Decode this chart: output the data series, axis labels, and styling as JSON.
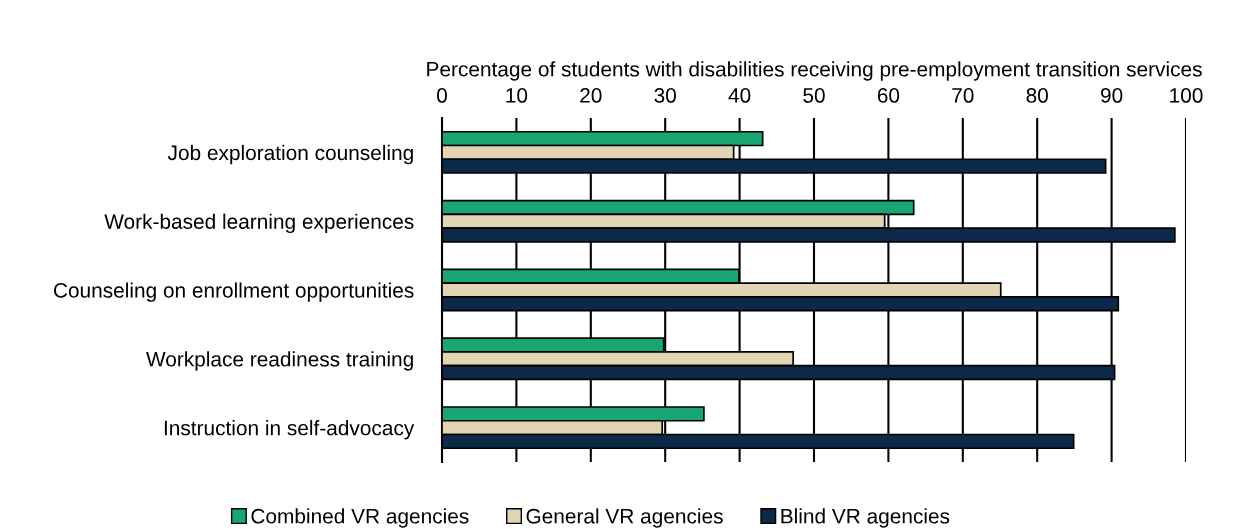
{
  "chart_data": {
    "type": "bar",
    "orientation": "horizontal",
    "xlabel": "Percentage of students with disabilities receiving pre-employment transition services",
    "categories": [
      "Job exploration counseling",
      "Work-based learning experiences",
      "Counseling on enrollment opportunities",
      "Workplace readiness training",
      "Instruction in self-advocacy"
    ],
    "series": [
      {
        "name": "Combined VR agencies",
        "color": "#18a673",
        "values": [
          43.1,
          63.4,
          39.9,
          29.8,
          35.2
        ]
      },
      {
        "name": "General VR agencies",
        "color": "#e2d5b4",
        "values": [
          39.2,
          59.5,
          75.1,
          47.2,
          29.6
        ]
      },
      {
        "name": "Blind VR agencies",
        "color": "#0c2949",
        "values": [
          89.2,
          98.5,
          90.9,
          90.4,
          84.9
        ]
      }
    ],
    "xlim": [
      0,
      100
    ],
    "xticks": [
      0,
      10,
      20,
      30,
      40,
      50,
      60,
      70,
      80,
      90,
      100
    ],
    "grid": "x",
    "legend": "bottom"
  }
}
